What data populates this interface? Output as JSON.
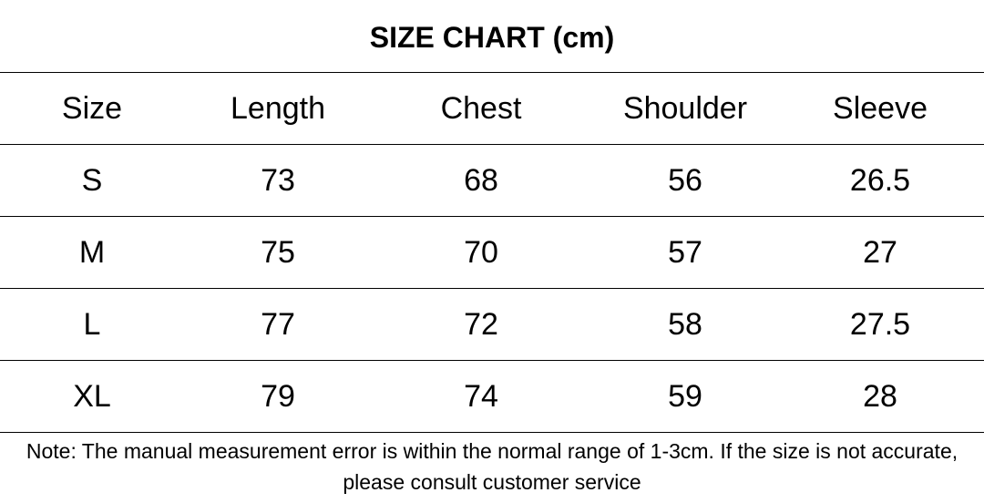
{
  "header": {
    "title": "SIZE CHART  (cm)"
  },
  "table": {
    "columns": [
      "Size",
      "Length",
      "Chest",
      "Shoulder",
      "Sleeve"
    ],
    "rows": [
      [
        "S",
        "73",
        "68",
        "56",
        "26.5"
      ],
      [
        "M",
        "75",
        "70",
        "57",
        "27"
      ],
      [
        "L",
        "77",
        "72",
        "58",
        "27.5"
      ],
      [
        "XL",
        "79",
        "74",
        "59",
        "28"
      ]
    ]
  },
  "footer": {
    "note": "Note: The manual measurement error is within the normal range of 1-3cm. If the size is not accurate, please consult customer service"
  }
}
